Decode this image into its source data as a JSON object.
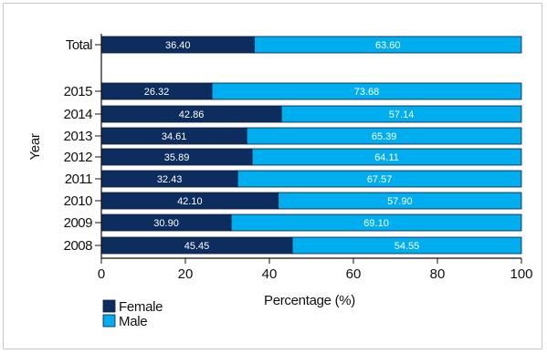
{
  "chart_data": {
    "type": "bar",
    "orientation": "horizontal",
    "stacked": true,
    "categories": [
      "Total",
      "2015",
      "2014",
      "2013",
      "2012",
      "2011",
      "2010",
      "2009",
      "2008"
    ],
    "series": [
      {
        "name": "Female",
        "color": "#0d2d5e",
        "values": [
          36.4,
          26.32,
          42.86,
          34.61,
          35.89,
          32.43,
          42.1,
          30.9,
          45.45
        ],
        "labels": [
          "36.40",
          "26.32",
          "42.86",
          "34.61",
          "35.89",
          "32.43",
          "42.10",
          "30.90",
          "45.45"
        ]
      },
      {
        "name": "Male",
        "color": "#00aeef",
        "values": [
          63.6,
          73.68,
          57.14,
          65.39,
          64.11,
          67.57,
          57.9,
          69.1,
          54.55
        ],
        "labels": [
          "63.60",
          "73.68",
          "57.14",
          "65.39",
          "64.11",
          "67.57",
          "57.90",
          "69.10",
          "54.55"
        ]
      }
    ],
    "xlabel": "Percentage (%)",
    "ylabel": "Year",
    "xlim": [
      0,
      100
    ],
    "xticks": [
      "0",
      "20",
      "40",
      "60",
      "80",
      "100"
    ],
    "grid": false,
    "legend_position": "bottom-left"
  }
}
